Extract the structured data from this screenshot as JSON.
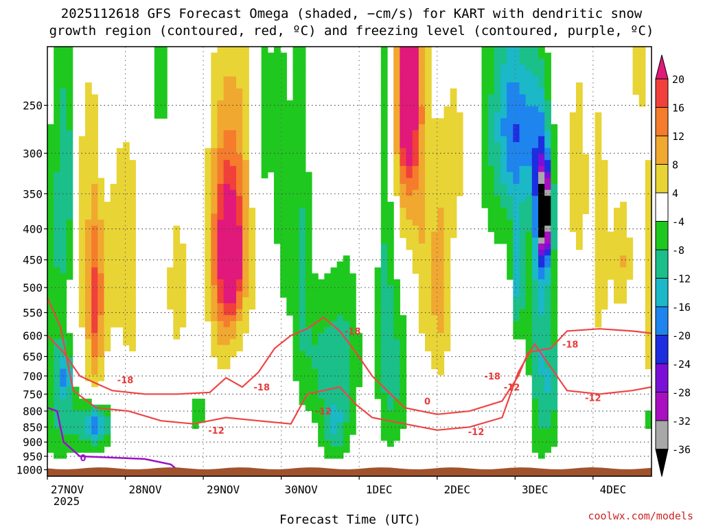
{
  "title": {
    "line1": "2025112618 GFS Forecast Omega (shaded, −cm/s) for KART with dendritic snow",
    "line2": "growth region (contoured, red, ºC) and freezing level (contoured, purple, ºC)"
  },
  "credit": "coolwx.com/models",
  "chart_data": {
    "type": "heatmap",
    "xlabel": "Forecast Time (UTC)",
    "x_ticks": [
      "27NOV",
      "28NOV",
      "29NOV",
      "30NOV",
      "1DEC",
      "2DEC",
      "3DEC",
      "4DEC"
    ],
    "x_year": "2025",
    "x_range_hours": [
      0,
      186
    ],
    "y_ticks": [
      250,
      300,
      350,
      400,
      450,
      500,
      550,
      600,
      650,
      700,
      750,
      800,
      850,
      900,
      950,
      1000
    ],
    "ylim_hpa": [
      200,
      1025
    ],
    "colorbar": {
      "levels": [
        20,
        16,
        12,
        8,
        4,
        -4,
        -8,
        -12,
        -16,
        -20,
        -24,
        -28,
        -32,
        -36
      ],
      "colors": [
        "#e0197a",
        "#f1403b",
        "#f47c2c",
        "#f0a830",
        "#e8d435",
        "#ffffff",
        "#1fc81f",
        "#1bbf8a",
        "#1bb8c8",
        "#1e84ee",
        "#1c2ee0",
        "#7a10d8",
        "#a80fc0",
        "#a8a8a8",
        "#000000"
      ]
    },
    "omega_blobs": [
      {
        "x": 3,
        "p": 600,
        "rx": 6,
        "rp": 400,
        "v": -8
      },
      {
        "x": 6,
        "p": 330,
        "rx": 3,
        "rp": 150,
        "v": -12
      },
      {
        "x": 5.5,
        "p": 700,
        "rx": 2,
        "rp": 60,
        "v": -12
      },
      {
        "x": 13,
        "p": 520,
        "rx": 4,
        "rp": 350,
        "v": 6
      },
      {
        "x": 15,
        "p": 530,
        "rx": 2,
        "rp": 160,
        "v": 12
      },
      {
        "x": 8,
        "p": 380,
        "rx": 4,
        "rp": 200,
        "v": 6
      },
      {
        "x": 20,
        "p": 420,
        "rx": 5,
        "rp": 300,
        "v": 5
      },
      {
        "x": 26,
        "p": 480,
        "rx": 3,
        "rp": 250,
        "v": 5
      },
      {
        "x": 11,
        "p": 840,
        "rx": 8,
        "rp": 90,
        "v": -8
      },
      {
        "x": 15,
        "p": 845,
        "rx": 4,
        "rp": 70,
        "v": -14
      },
      {
        "x": 18,
        "p": 260,
        "rx": 2,
        "rp": 80,
        "v": -8
      },
      {
        "x": 35,
        "p": 230,
        "rx": 2,
        "rp": 60,
        "v": -8
      },
      {
        "x": 40,
        "p": 500,
        "rx": 5,
        "rp": 230,
        "v": 5
      },
      {
        "x": 53,
        "p": 460,
        "rx": 4,
        "rp": 220,
        "v": 8
      },
      {
        "x": 56,
        "p": 370,
        "rx": 6,
        "rp": 230,
        "v": 6
      },
      {
        "x": 56,
        "p": 440,
        "rx": 4,
        "rp": 130,
        "v": 14
      },
      {
        "x": 57,
        "p": 450,
        "rx": 2,
        "rp": 70,
        "v": 19
      },
      {
        "x": 61,
        "p": 350,
        "rx": 5,
        "rp": 250,
        "v": 6
      },
      {
        "x": 46,
        "p": 800,
        "rx": 3,
        "rp": 60,
        "v": -8
      },
      {
        "x": 66,
        "p": 280,
        "rx": 4,
        "rp": 150,
        "v": -8
      },
      {
        "x": 69,
        "p": 520,
        "rx": 3,
        "rp": 220,
        "v": 5
      },
      {
        "x": 72,
        "p": 380,
        "rx": 3,
        "rp": 200,
        "v": -8
      },
      {
        "x": 78,
        "p": 420,
        "rx": 3,
        "rp": 300,
        "v": -8
      },
      {
        "x": 84,
        "p": 650,
        "rx": 6,
        "rp": 180,
        "v": -8
      },
      {
        "x": 92,
        "p": 650,
        "rx": 5,
        "rp": 230,
        "v": -8
      },
      {
        "x": 88,
        "p": 850,
        "rx": 4,
        "rp": 100,
        "v": -10
      },
      {
        "x": 99,
        "p": 300,
        "rx": 3,
        "rp": 230,
        "v": 4
      },
      {
        "x": 104,
        "p": 350,
        "rx": 3,
        "rp": 400,
        "v": -8
      },
      {
        "x": 107,
        "p": 700,
        "rx": 5,
        "rp": 230,
        "v": -8
      },
      {
        "x": 111,
        "p": 250,
        "rx": 5,
        "rp": 170,
        "v": 14
      },
      {
        "x": 111,
        "p": 230,
        "rx": 3,
        "rp": 90,
        "v": 18
      },
      {
        "x": 116,
        "p": 450,
        "rx": 3,
        "rp": 250,
        "v": 6
      },
      {
        "x": 121,
        "p": 500,
        "rx": 3,
        "rp": 200,
        "v": 10
      },
      {
        "x": 126,
        "p": 300,
        "rx": 4,
        "rp": 150,
        "v": 5
      },
      {
        "x": 139,
        "p": 280,
        "rx": 7,
        "rp": 160,
        "v": -8
      },
      {
        "x": 144,
        "p": 270,
        "rx": 5,
        "rp": 90,
        "v": -14
      },
      {
        "x": 150,
        "p": 280,
        "rx": 4,
        "rp": 90,
        "v": -8
      },
      {
        "x": 151,
        "p": 600,
        "rx": 3,
        "rp": 350,
        "v": -10
      },
      {
        "x": 153,
        "p": 380,
        "rx": 3,
        "rp": 110,
        "v": -20
      },
      {
        "x": 153,
        "p": 375,
        "rx": 1.5,
        "rp": 50,
        "v": -28
      },
      {
        "x": 155,
        "p": 720,
        "rx": 3,
        "rp": 200,
        "v": -10
      },
      {
        "x": 145,
        "p": 480,
        "rx": 2,
        "rp": 120,
        "v": -14
      },
      {
        "x": 163,
        "p": 330,
        "rx": 3,
        "rp": 150,
        "v": 6
      },
      {
        "x": 170,
        "p": 420,
        "rx": 4,
        "rp": 350,
        "v": 5
      },
      {
        "x": 177,
        "p": 450,
        "rx": 3,
        "rp": 100,
        "v": 8
      },
      {
        "x": 182,
        "p": 210,
        "rx": 2,
        "rp": 60,
        "v": 6
      },
      {
        "x": 185,
        "p": 500,
        "rx": 2,
        "rp": 300,
        "v": 6
      },
      {
        "x": 185,
        "p": 820,
        "rx": 2,
        "rp": 60,
        "v": -8
      }
    ],
    "dgz_upper_-18": [
      [
        0,
        600
      ],
      [
        5,
        640
      ],
      [
        10,
        700
      ],
      [
        15,
        720
      ],
      [
        20,
        740
      ],
      [
        30,
        750
      ],
      [
        40,
        750
      ],
      [
        50,
        745
      ],
      [
        55,
        705
      ],
      [
        60,
        730
      ],
      [
        65,
        690
      ],
      [
        70,
        630
      ],
      [
        75,
        600
      ],
      [
        80,
        585
      ],
      [
        85,
        560
      ],
      [
        90,
        590
      ],
      [
        95,
        640
      ],
      [
        100,
        700
      ],
      [
        110,
        790
      ],
      [
        120,
        810
      ],
      [
        130,
        800
      ],
      [
        140,
        770
      ],
      [
        145,
        700
      ],
      [
        148,
        640
      ],
      [
        155,
        630
      ],
      [
        160,
        590
      ],
      [
        170,
        585
      ],
      [
        180,
        590
      ],
      [
        186,
        595
      ]
    ],
    "dgz_lower_-12": [
      [
        0,
        520
      ],
      [
        4,
        580
      ],
      [
        8,
        740
      ],
      [
        15,
        790
      ],
      [
        25,
        800
      ],
      [
        35,
        830
      ],
      [
        45,
        840
      ],
      [
        55,
        820
      ],
      [
        65,
        830
      ],
      [
        75,
        840
      ],
      [
        80,
        750
      ],
      [
        90,
        730
      ],
      [
        95,
        780
      ],
      [
        100,
        820
      ],
      [
        110,
        840
      ],
      [
        120,
        860
      ],
      [
        130,
        850
      ],
      [
        140,
        820
      ],
      [
        145,
        690
      ],
      [
        150,
        620
      ],
      [
        160,
        740
      ],
      [
        170,
        750
      ],
      [
        180,
        740
      ],
      [
        186,
        730
      ]
    ],
    "freezing_level_0": [
      [
        0,
        790
      ],
      [
        3,
        800
      ],
      [
        5,
        900
      ],
      [
        10,
        950
      ],
      [
        20,
        955
      ],
      [
        30,
        960
      ],
      [
        38,
        980
      ],
      [
        40,
        1000
      ]
    ],
    "contour_labels": [
      {
        "t": "-18",
        "x": 24,
        "p": 710,
        "k": "r"
      },
      {
        "t": "-18",
        "x": 66,
        "p": 730,
        "k": "r"
      },
      {
        "t": "-18",
        "x": 94,
        "p": 590,
        "k": "r"
      },
      {
        "t": "-18",
        "x": 137,
        "p": 700,
        "k": "r"
      },
      {
        "t": "-18",
        "x": 161,
        "p": 620,
        "k": "r"
      },
      {
        "t": "-12",
        "x": 52,
        "p": 860,
        "k": "r"
      },
      {
        "t": "-12",
        "x": 85,
        "p": 800,
        "k": "r"
      },
      {
        "t": "-12",
        "x": 132,
        "p": 865,
        "k": "r"
      },
      {
        "t": "-12",
        "x": 143,
        "p": 730,
        "k": "r"
      },
      {
        "t": "-12",
        "x": 168,
        "p": 760,
        "k": "r"
      },
      {
        "t": "0",
        "x": 11,
        "p": 955,
        "k": "p"
      },
      {
        "t": "0",
        "x": 117,
        "p": 770,
        "k": "r"
      }
    ]
  }
}
